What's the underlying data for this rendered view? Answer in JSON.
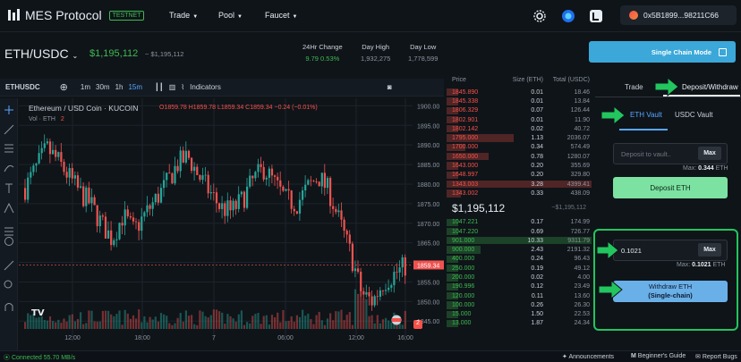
{
  "nav": {
    "logo_text": "MES Protocol",
    "badge": "TESTNET",
    "menu": [
      "Trade",
      "Pool",
      "Faucet"
    ],
    "wallet_address": "0x5B1899...98211C66"
  },
  "pair": {
    "symbol": "ETH/USDC",
    "last_price": "$1,195,112",
    "last_price_sub": "~ $1,195,112",
    "change_label": "24Hr Change",
    "change_value": "9.79",
    "change_pct": "0.53%",
    "high_label": "Day High",
    "high_value": "1,932,275",
    "low_label": "Day Low",
    "low_value": "1,778,599"
  },
  "single_chain_button": "Single Chain Mode",
  "chart_toolbar": {
    "symbol": "ETHUSDC",
    "intervals": [
      "1m",
      "30m",
      "1h",
      "15m"
    ],
    "indicators": "Indicators"
  },
  "chart_header": {
    "title": "Ethereum / USD Coin · KUCOIN",
    "o": "O1859.78",
    "h": "H1859.78",
    "l": "L1859.34",
    "c": "C1859.34",
    "chg": "−0.24 (−0.01%)",
    "vol": "Vol · ETH",
    "legend_count": "2"
  },
  "chart_data": {
    "type": "candlestick",
    "title": "Ethereum / USD Coin · KUCOIN",
    "y_ticks": [
      "1900.00",
      "1895.00",
      "1890.00",
      "1885.00",
      "1880.00",
      "1875.00",
      "1870.00",
      "1865.00",
      "1860.00",
      "1855.00",
      "1850.00",
      "1845.00"
    ],
    "x_ticks": [
      "12:00",
      "18:00",
      "7",
      "06:00",
      "12:00",
      "16:00"
    ],
    "last_price_tag": "1859.34",
    "ylim": [
      1843,
      1901
    ]
  },
  "orderbook": {
    "headers": [
      "Price",
      "Size (ETH)",
      "Total (USDC)"
    ],
    "asks": [
      [
        "1845.890",
        "0.01",
        "18.46"
      ],
      [
        "1845.338",
        "0.01",
        "13.84"
      ],
      [
        "1806.329",
        "0.07",
        "126.44"
      ],
      [
        "1802.901",
        "0.01",
        "11.90"
      ],
      [
        "1802.142",
        "0.02",
        "40.72"
      ],
      [
        "1795.000",
        "1.13",
        "2036.07"
      ],
      [
        "1700.000",
        "0.34",
        "574.49"
      ],
      [
        "1650.000",
        "0.78",
        "1280.07"
      ],
      [
        "1643.000",
        "0.20",
        "355.69"
      ],
      [
        "1648.997",
        "0.20",
        "329.80"
      ],
      [
        "1343.003",
        "3.28",
        "4399.41"
      ],
      [
        "1343.002",
        "0.33",
        "438.09"
      ]
    ],
    "mid_price": "$1,195,112",
    "mid_sub": "~$1,195,112",
    "bids": [
      [
        "1047.221",
        "0.17",
        "174.99"
      ],
      [
        "1047.220",
        "0.69",
        "726.77"
      ],
      [
        "901.000",
        "10.33",
        "9311.79"
      ],
      [
        "900.000",
        "2.43",
        "2191.32"
      ],
      [
        "400.000",
        "0.24",
        "96.43"
      ],
      [
        "250.000",
        "0.19",
        "49.12"
      ],
      [
        "200.000",
        "0.02",
        "4.00"
      ],
      [
        "190.996",
        "0.12",
        "23.49"
      ],
      [
        "120.000",
        "0.11",
        "13.60"
      ],
      [
        "100.000",
        "0.26",
        "26.30"
      ],
      [
        "15.000",
        "1.50",
        "22.53"
      ],
      [
        "13.000",
        "1.87",
        "24.34"
      ]
    ]
  },
  "right_panel": {
    "tab_trade": "Trade",
    "tab_deposit": "Deposit/Withdraw",
    "vault_eth": "ETH Vault",
    "vault_usdc": "USDC Vault",
    "deposit_placeholder": "Deposit to vault..",
    "max": "Max",
    "deposit_max_label": "Max:",
    "deposit_max_value": "0.344",
    "deposit_max_unit": "ETH",
    "deposit_button": "Deposit ETH",
    "withdraw_value": "0.1021",
    "withdraw_max_label": "Max:",
    "withdraw_max_value": "0.1021",
    "withdraw_max_unit": "ETH",
    "withdraw_button_line1": "Withdraw ETH",
    "withdraw_button_line2": "(Single-chain)"
  },
  "footer": {
    "status": "Connected 55.70 MB/s",
    "announcements": "Announcements",
    "guide": "Beginner's Guide",
    "bugs": "Report Bugs"
  },
  "colors": {
    "green": "#3fb950",
    "red": "#f85149",
    "accent_blue": "#3ba8d9",
    "highlight_green": "#22c55e"
  }
}
